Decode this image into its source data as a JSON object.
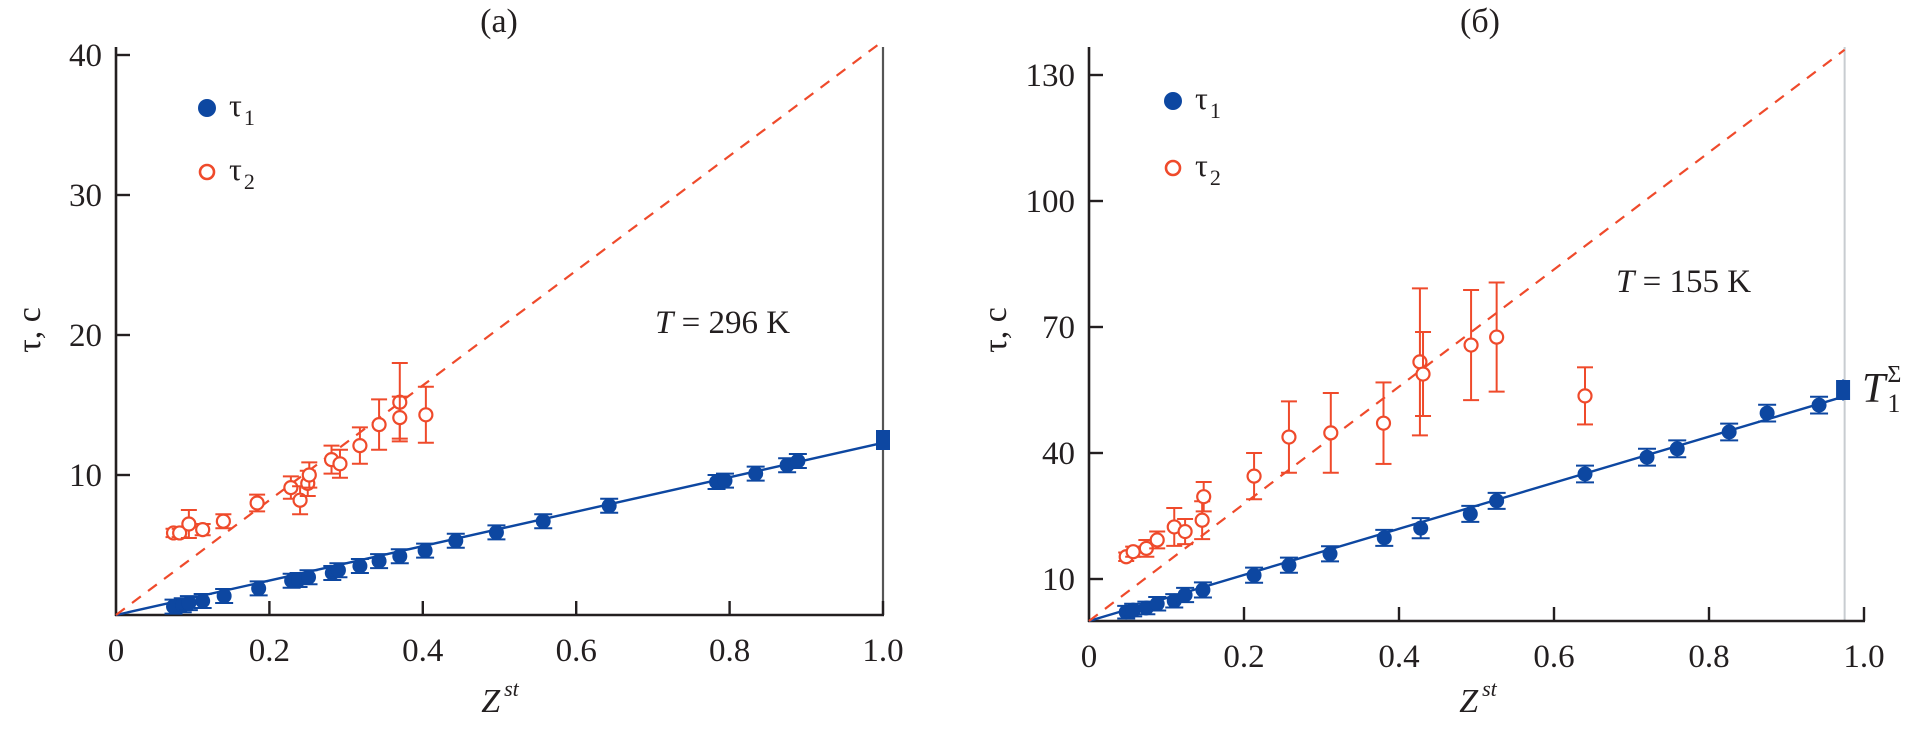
{
  "figure": {
    "description": "Two-panel plot of relaxation times tau1 and tau2 versus Z^st"
  },
  "colors": {
    "tau1": "#0d47a1",
    "tau2": "#ef4a2b",
    "axis": "#231f20",
    "ref_line_a": "#555555",
    "ref_line_b": "#c8ccd0"
  },
  "chart_data": [
    {
      "type": "scatter",
      "panel_label": "(a)",
      "title": "(a)",
      "xlabel_main": "Z",
      "xlabel_sup": "st",
      "ylabel": "τ, с",
      "xlim": [
        0,
        1.0
      ],
      "ylim": [
        0,
        40
      ],
      "x_ticks": [
        0,
        0.2,
        0.4,
        0.6,
        0.8,
        1.0
      ],
      "x_tick_labels": [
        "0",
        "0.2",
        "0.4",
        "0.6",
        "0.8",
        "1.0"
      ],
      "y_ticks": [
        10,
        20,
        30,
        40
      ],
      "y_tick_labels": [
        "10",
        "20",
        "30",
        "40"
      ],
      "grid": false,
      "annotation": {
        "italic": "T",
        "text": " = 296 K",
        "x": 0.72,
        "y": 20.0
      },
      "legend": {
        "placement": "top-left",
        "entries": [
          {
            "symbol": "τ",
            "sub": "1",
            "marker": "filled-circle",
            "series": "tau1"
          },
          {
            "symbol": "τ",
            "sub": "2",
            "marker": "open-circle",
            "series": "tau2"
          }
        ]
      },
      "reference_vline_x": 1.0,
      "fit_lines": [
        {
          "series": "tau1",
          "style": "solid",
          "x": [
            0,
            1.0
          ],
          "y": [
            0,
            12.3
          ]
        },
        {
          "series": "tau2",
          "style": "dashed",
          "x": [
            0,
            1.0
          ],
          "y": [
            0,
            41.0
          ]
        }
      ],
      "series": [
        {
          "name": "τ1",
          "key": "tau1",
          "marker": "filled-circle",
          "points": [
            [
              0.075,
              0.6,
              0.5
            ],
            [
              0.087,
              0.7,
              0.5
            ],
            [
              0.095,
              0.85,
              0.5
            ],
            [
              0.113,
              1.0,
              0.5
            ],
            [
              0.141,
              1.36,
              0.5
            ],
            [
              0.186,
              1.9,
              0.5
            ],
            [
              0.229,
              2.45,
              0.5
            ],
            [
              0.238,
              2.5,
              0.5
            ],
            [
              0.251,
              2.7,
              0.5
            ],
            [
              0.282,
              3.0,
              0.5
            ],
            [
              0.29,
              3.2,
              0.5
            ],
            [
              0.318,
              3.5,
              0.5
            ],
            [
              0.343,
              3.85,
              0.5
            ],
            [
              0.37,
              4.2,
              0.5
            ],
            [
              0.403,
              4.6,
              0.5
            ],
            [
              0.443,
              5.3,
              0.5
            ],
            [
              0.496,
              5.9,
              0.5
            ],
            [
              0.557,
              6.7,
              0.5
            ],
            [
              0.643,
              7.8,
              0.5
            ],
            [
              0.783,
              9.5,
              0.5
            ],
            [
              0.794,
              9.6,
              0.5
            ],
            [
              0.834,
              10.1,
              0.5
            ],
            [
              0.875,
              10.7,
              0.5
            ],
            [
              0.889,
              11.0,
              0.5
            ]
          ],
          "end_marker": {
            "shape": "square",
            "x": 1.0,
            "y": 12.5,
            "err": 0.6
          }
        },
        {
          "name": "τ2",
          "key": "tau2",
          "marker": "open-circle",
          "points": [
            [
              0.075,
              5.86,
              0.3
            ],
            [
              0.083,
              5.86,
              0.3
            ],
            [
              0.095,
              6.5,
              1.0
            ],
            [
              0.113,
              6.1,
              0.4
            ],
            [
              0.14,
              6.7,
              0.5
            ],
            [
              0.184,
              8.0,
              0.6
            ],
            [
              0.228,
              9.1,
              0.8
            ],
            [
              0.24,
              8.2,
              1.0
            ],
            [
              0.25,
              9.4,
              0.9
            ],
            [
              0.252,
              10.0,
              0.9
            ],
            [
              0.281,
              11.1,
              1.0
            ],
            [
              0.292,
              10.8,
              1.0
            ],
            [
              0.318,
              12.1,
              1.3
            ],
            [
              0.343,
              13.6,
              1.8
            ],
            [
              0.37,
              15.2,
              2.8
            ],
            [
              0.37,
              14.1,
              1.5
            ],
            [
              0.404,
              14.3,
              2.0
            ]
          ]
        }
      ]
    },
    {
      "type": "scatter",
      "panel_label": "(б)",
      "title": "(б)",
      "xlabel_main": "Z",
      "xlabel_sup": "st",
      "ylabel": "τ, с",
      "xlim": [
        0,
        1.0
      ],
      "ylim": [
        0,
        137
      ],
      "x_ticks": [
        0,
        0.2,
        0.4,
        0.6,
        0.8,
        1.0
      ],
      "x_tick_labels": [
        "0",
        "0.2",
        "0.4",
        "0.6",
        "0.8",
        "1.0"
      ],
      "y_ticks": [
        10,
        40,
        70,
        100,
        130
      ],
      "y_tick_labels": [
        "10",
        "40",
        "70",
        "100",
        "130"
      ],
      "grid": false,
      "annotation": {
        "italic": "T",
        "text": " = 155 K",
        "x": 0.73,
        "y": 75.0
      },
      "end_label": {
        "italic": "T",
        "sup": "Σ",
        "sub": "1"
      },
      "legend": {
        "placement": "top-left",
        "entries": [
          {
            "symbol": "τ",
            "sub": "1",
            "marker": "filled-circle",
            "series": "tau1"
          },
          {
            "symbol": "τ",
            "sub": "2",
            "marker": "open-circle",
            "series": "tau2"
          }
        ]
      },
      "reference_vline_x": 0.975,
      "fit_lines": [
        {
          "series": "tau1",
          "style": "solid",
          "x": [
            0,
            0.975
          ],
          "y": [
            0,
            53.5
          ]
        },
        {
          "series": "tau2",
          "style": "dashed",
          "x": [
            0,
            0.975
          ],
          "y": [
            0,
            136.0
          ]
        }
      ],
      "series": [
        {
          "name": "τ1",
          "key": "tau1",
          "marker": "filled-circle",
          "points": [
            [
              0.048,
              2.1,
              1.5
            ],
            [
              0.057,
              2.6,
              1.5
            ],
            [
              0.074,
              3.1,
              1.5
            ],
            [
              0.088,
              4.1,
              1.6
            ],
            [
              0.11,
              4.8,
              1.6
            ],
            [
              0.124,
              6.2,
              1.7
            ],
            [
              0.147,
              7.4,
              1.8
            ],
            [
              0.213,
              10.9,
              1.8
            ],
            [
              0.258,
              13.3,
              1.8
            ],
            [
              0.311,
              16.0,
              1.8
            ],
            [
              0.381,
              19.8,
              1.9
            ],
            [
              0.428,
              22.1,
              2.4
            ],
            [
              0.492,
              25.5,
              1.9
            ],
            [
              0.526,
              28.6,
              1.9
            ],
            [
              0.64,
              35.0,
              2.0
            ],
            [
              0.72,
              39.0,
              2.0
            ],
            [
              0.759,
              41.0,
              2.0
            ],
            [
              0.826,
              45.0,
              2.0
            ],
            [
              0.875,
              49.5,
              2.0
            ],
            [
              0.942,
              51.4,
              2.0
            ]
          ],
          "end_marker": {
            "shape": "square",
            "x": 0.973,
            "y": 55.0,
            "err": 2.5
          }
        },
        {
          "name": "τ2",
          "key": "tau2",
          "marker": "open-circle",
          "points": [
            [
              0.048,
              15.3,
              1.0
            ],
            [
              0.057,
              16.5,
              1.2
            ],
            [
              0.074,
              17.3,
              2.0
            ],
            [
              0.088,
              19.3,
              2.0
            ],
            [
              0.11,
              22.4,
              4.5
            ],
            [
              0.124,
              21.3,
              3.0
            ],
            [
              0.146,
              24.0,
              4.5
            ],
            [
              0.148,
              29.6,
              3.5
            ],
            [
              0.213,
              34.5,
              5.5
            ],
            [
              0.258,
              43.8,
              8.5
            ],
            [
              0.312,
              44.8,
              9.5
            ],
            [
              0.38,
              47.1,
              9.7
            ],
            [
              0.427,
              61.7,
              17.5
            ],
            [
              0.431,
              58.8,
              10.0
            ],
            [
              0.493,
              65.7,
              13.1
            ],
            [
              0.526,
              67.6,
              13.0
            ],
            [
              0.64,
              53.6,
              6.8
            ]
          ]
        }
      ]
    }
  ]
}
